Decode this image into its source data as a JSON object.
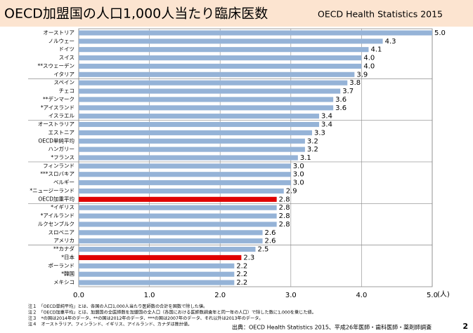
{
  "chart_data": {
    "type": "hbar",
    "title": "OECD加盟国の人口1,000人当たり臨床医数",
    "subtitle": "OECD Health Statistics 2015",
    "x_unit": "(人)",
    "categories": [
      "オーストリア",
      "ノルウェー",
      "ドイツ",
      "スイス",
      "**スウェーデン",
      "イタリア",
      "スペイン",
      "チェコ",
      "**デンマーク",
      "*アイスランド",
      "イスラエル",
      "オーストラリア",
      "エストニア",
      "OECD単純平均",
      "ハンガリー",
      "*フランス",
      "フィンランド",
      "***スロバキア",
      "ベルギー",
      "*ニュージーランド",
      "OECD加重平均",
      "*イギリス",
      "*アイルランド",
      "ルクセンブルク",
      "スロベニア",
      "アメリカ",
      "**カナダ",
      "*日本",
      "ポーランド",
      "*韓国",
      "メキシコ"
    ],
    "values": [
      5,
      4.3,
      4.1,
      4,
      4,
      3.9,
      3.8,
      3.7,
      3.6,
      3.6,
      3.4,
      3.4,
      3.3,
      3.2,
      3.2,
      3.1,
      3,
      3,
      3,
      2.9,
      2.8,
      2.8,
      2.8,
      2.8,
      2.6,
      2.6,
      2.5,
      2.3,
      2.2,
      2.2,
      2.2
    ],
    "value_labels": [
      "5.0",
      "4.3",
      "4.1",
      "4.0",
      "4.0",
      "3.9",
      "3.8",
      "3.7",
      "3.6",
      "3.6",
      "3.4",
      "3.4",
      "3.3",
      "3.2",
      "3.2",
      "3.1",
      "3.0",
      "3.0",
      "3.0",
      "2.9",
      "2.8",
      "2.8",
      "2.8",
      "2.8",
      "2.6",
      "2.6",
      "2.5",
      "2.3",
      "2.2",
      "2.2",
      "2.2"
    ],
    "colors": [
      "#95b3d7",
      "#95b3d7",
      "#95b3d7",
      "#95b3d7",
      "#95b3d7",
      "#95b3d7",
      "#95b3d7",
      "#95b3d7",
      "#95b3d7",
      "#95b3d7",
      "#95b3d7",
      "#95b3d7",
      "#95b3d7",
      "#95b3d7",
      "#95b3d7",
      "#95b3d7",
      "#95b3d7",
      "#95b3d7",
      "#95b3d7",
      "#95b3d7",
      "#e00000",
      "#95b3d7",
      "#95b3d7",
      "#95b3d7",
      "#95b3d7",
      "#95b3d7",
      "#95b3d7",
      "#e00000",
      "#95b3d7",
      "#95b3d7",
      "#95b3d7"
    ],
    "xlim": [
      0,
      5
    ],
    "xticks": [
      {
        "value": 0,
        "label": "0.0"
      },
      {
        "value": 1,
        "label": "1.0"
      },
      {
        "value": 2,
        "label": "2.0"
      },
      {
        "value": 3,
        "label": "3.0"
      },
      {
        "value": 4,
        "label": "4.0"
      },
      {
        "value": 5,
        "label": "5.0"
      }
    ],
    "grid": true
  },
  "notes": [
    "注１　「OECD単純平均」とは、各国の人口1,000人当たり医師数の合計を国数で除した値。",
    "注２　「OECD加重平均」とは、加盟国の全医師数を加盟国の全人口（各国における医師数調査年と同一年の人口）で除した数に1,000を乗じた値。",
    "注３　*の国は2014年のデータ、**の国は2012年のデータ、***の国は2007年のデータ、それ以外は2013年のデータ。",
    "注４　オーストラリア、フィンランド、イギリス、アイルランド、カナダは推計値。"
  ],
  "source": "出典：OECD Health Statistics 2015、平成26年医師・歯科医師・薬剤師調査",
  "page_number": "2"
}
